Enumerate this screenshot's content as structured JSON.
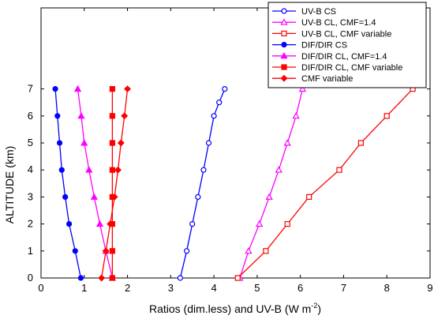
{
  "chart_data": {
    "type": "line",
    "xlabel": "Ratios (dim.less) and UV-B (W m",
    "xlabel_superscript": "-2",
    "xlabel_suffix": ")",
    "ylabel": "ALTITUDE (km)",
    "xlim": [
      0,
      9
    ],
    "ylim": [
      0,
      10
    ],
    "x_ticks": [
      "0",
      "1",
      "2",
      "3",
      "4",
      "5",
      "6",
      "7",
      "8",
      "9"
    ],
    "y_ticks": [
      "0",
      "1",
      "2",
      "3",
      "4",
      "5",
      "6",
      "7"
    ],
    "y_tick_values": [
      0,
      1,
      2,
      3,
      4,
      5,
      6,
      7
    ],
    "grid": false,
    "legend_position": "top-right",
    "series": [
      {
        "name": "UV-B CS",
        "color": "#0000ff",
        "marker": "circle-open",
        "x": [
          3.22,
          3.37,
          3.5,
          3.63,
          3.76,
          3.88,
          4.0,
          4.12,
          4.25
        ],
        "y": [
          0,
          1,
          2,
          3,
          4,
          5,
          6,
          6.5,
          7
        ]
      },
      {
        "name": "UV-B CL, CMF=1.4",
        "color": "#ff00ff",
        "marker": "triangle-open",
        "x": [
          4.6,
          4.8,
          5.05,
          5.28,
          5.5,
          5.7,
          5.9,
          6.05
        ],
        "y": [
          0,
          1,
          2,
          3,
          4,
          5,
          6,
          7
        ]
      },
      {
        "name": "UV-B CL, CMF variable",
        "color": "#ff0000",
        "marker": "square-open",
        "x": [
          4.55,
          5.2,
          5.7,
          6.2,
          6.9,
          7.4,
          8.0,
          8.6
        ],
        "y": [
          0,
          1,
          2,
          3,
          4,
          5,
          6,
          7
        ]
      },
      {
        "name": "DIF/DIR CS",
        "color": "#0000ff",
        "marker": "circle-filled",
        "x": [
          0.92,
          0.79,
          0.65,
          0.56,
          0.48,
          0.43,
          0.38,
          0.33
        ],
        "y": [
          0,
          1,
          2,
          3,
          4,
          5,
          6,
          7
        ]
      },
      {
        "name": "DIF/DIR CL, CMF=1.4",
        "color": "#ff00ff",
        "marker": "triangle-filled",
        "x": [
          1.65,
          1.5,
          1.36,
          1.23,
          1.11,
          1.0,
          0.93,
          0.85
        ],
        "y": [
          0,
          1,
          2,
          3,
          4,
          5,
          6,
          7
        ]
      },
      {
        "name": "DIF/DIR CL, CMF variable",
        "color": "#ff0000",
        "marker": "square-filled",
        "x": [
          1.65,
          1.65,
          1.65,
          1.65,
          1.65,
          1.65,
          1.65,
          1.65
        ],
        "y": [
          0,
          1,
          2,
          3,
          4,
          5,
          6,
          7
        ]
      },
      {
        "name": "CMF variable",
        "color": "#ff0000",
        "marker": "diamond-filled",
        "x": [
          1.4,
          1.5,
          1.6,
          1.7,
          1.78,
          1.85,
          1.93,
          2.0
        ],
        "y": [
          0,
          1,
          2,
          3,
          4,
          5,
          6,
          7
        ]
      }
    ]
  }
}
